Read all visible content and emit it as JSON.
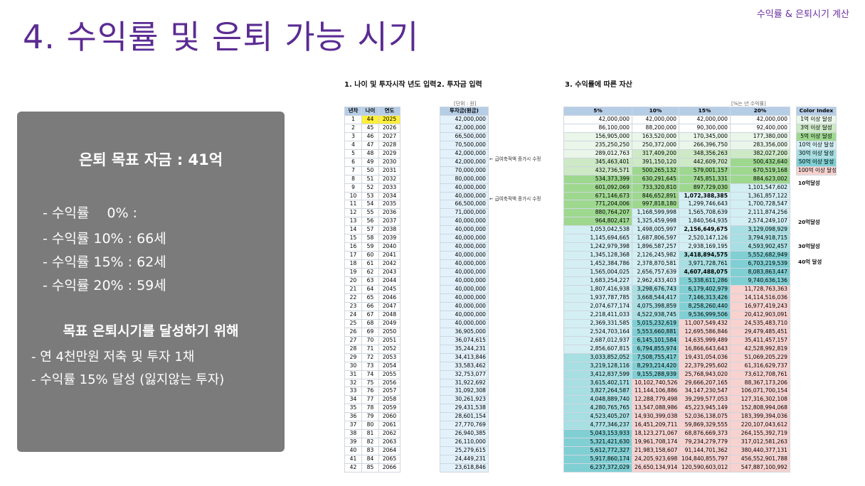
{
  "header": {
    "corner_label": "수익률 & 은퇴시기 계산",
    "title": "4. 수익률 및 은퇴 가능 시기"
  },
  "panel": {
    "goal": "은퇴 목표 자금 : 41억",
    "rates": [
      "- 수익률 　0% :",
      "- 수익률 10% : 66세",
      "- 수익률 15% : 62세",
      "- 수익률 20% : 59세"
    ],
    "subtitle": "목표 은퇴시기를 달성하기 위해",
    "actions": [
      "- 연 4천만원 저축 및 투자 1채",
      "- 수익률 15% 달성 (잃지않는 투자)"
    ]
  },
  "sheet": {
    "section1": "1. 나이 및 투자시작 년도 입력",
    "section2": "2. 투자금 입력",
    "section3": "3. 수익률에 따른 자산",
    "unit_label": "[단위 : 원]",
    "rate_unit": "[%는 년 수익률]",
    "headers_left": [
      "년차",
      "나이",
      "연도"
    ],
    "header_invest": "투자금(원금)",
    "headers_rates": [
      "5%",
      "10%",
      "15%",
      "20%"
    ],
    "note1": "← 급여축적액 증가시 수정",
    "note2": "← 급여축적액 증가시 수정",
    "color_index_title": "Color Index",
    "color_index": [
      {
        "label": "1억 이상 달성",
        "color": "#e9f6e9"
      },
      {
        "label": "3억 이상 달성",
        "color": "#cde9c5"
      },
      {
        "label": "5억 이상 달성",
        "color": "#9ed88f"
      },
      {
        "label": "10억 이상 달성",
        "color": "#d3eff3"
      },
      {
        "label": "30억 이상 달성",
        "color": "#a7dfe2"
      },
      {
        "label": "50억 이상 달성",
        "color": "#7fcfd3"
      },
      {
        "label": "100억 이상 달성",
        "color": "#f7d2cf"
      }
    ],
    "milestones": [
      "10억달성",
      "20억달성",
      "30억달성",
      "40억 달성"
    ],
    "rows": [
      [
        "1",
        "44",
        "2025",
        "42,000,000",
        "42,000,000",
        "42,000,000",
        "42,000,000",
        "42,000,000",
        "c0c0c0c0"
      ],
      [
        "2",
        "45",
        "2026",
        "42,000,000",
        "86,100,000",
        "88,200,000",
        "90,300,000",
        "92,400,000",
        "c0c0c0c0"
      ],
      [
        "3",
        "46",
        "2027",
        "66,500,000",
        "156,905,000",
        "163,520,000",
        "170,345,000",
        "177,380,000",
        "c1c1c1c1"
      ],
      [
        "4",
        "47",
        "2028",
        "70,500,000",
        "235,250,250",
        "250,372,000",
        "266,396,750",
        "283,356,000",
        "c1c1c1c1"
      ],
      [
        "5",
        "48",
        "2029",
        "42,000,000",
        "289,012,763",
        "317,409,200",
        "348,356,263",
        "382,027,200",
        "c1c2c2c2"
      ],
      [
        "6",
        "49",
        "2030",
        "42,000,000",
        "345,463,401",
        "391,150,120",
        "442,609,702",
        "500,432,640",
        "c2c2c2c3"
      ],
      [
        "7",
        "50",
        "2031",
        "70,000,000",
        "432,736,571",
        "500,265,132",
        "579,001,157",
        "670,519,168",
        "c2c3c3c3"
      ],
      [
        "8",
        "51",
        "2032",
        "80,000,000",
        "534,373,399",
        "630,291,645",
        "745,851,331",
        "884,623,002",
        "c3c3c3c3"
      ],
      [
        "9",
        "52",
        "2033",
        "40,000,000",
        "601,092,069",
        "733,320,810",
        "897,729,030",
        "1,101,547,602",
        "c3c3c3c4"
      ],
      [
        "10",
        "53",
        "2034",
        "40,000,000",
        "671,146,673",
        "846,652,891",
        "1,072,388,385",
        "1,361,857,122",
        "c3c3c4c4"
      ],
      [
        "11",
        "54",
        "2035",
        "66,500,000",
        "771,204,006",
        "997,818,180",
        "1,299,746,643",
        "1,700,728,547",
        "c3c3c4c4"
      ],
      [
        "12",
        "55",
        "2036",
        "71,000,000",
        "880,764,207",
        "1,168,599,998",
        "1,565,708,639",
        "2,111,874,256",
        "c3c4c4c4"
      ],
      [
        "13",
        "56",
        "2037",
        "40,000,000",
        "964,802,417",
        "1,325,459,998",
        "1,840,564,935",
        "2,574,249,107",
        "c3c4c4c4"
      ],
      [
        "14",
        "57",
        "2038",
        "40,000,000",
        "1,053,042,538",
        "1,498,005,997",
        "2,156,649,675",
        "3,129,098,929",
        "c4c4c4c5"
      ],
      [
        "15",
        "58",
        "2039",
        "40,000,000",
        "1,145,694,665",
        "1,687,806,597",
        "2,520,147,126",
        "3,794,918,715",
        "c4c4c4c5"
      ],
      [
        "16",
        "59",
        "2040",
        "40,000,000",
        "1,242,979,398",
        "1,896,587,257",
        "2,938,169,195",
        "4,593,902,457",
        "c4c4c4c5"
      ],
      [
        "17",
        "60",
        "2041",
        "40,000,000",
        "1,345,128,368",
        "2,126,245,982",
        "3,418,894,575",
        "5,552,682,949",
        "c4c4c5c6"
      ],
      [
        "18",
        "61",
        "2042",
        "40,000,000",
        "1,452,384,786",
        "2,378,870,581",
        "3,971,728,761",
        "6,703,219,539",
        "c4c4c5c6"
      ],
      [
        "19",
        "62",
        "2043",
        "40,000,000",
        "1,565,004,025",
        "2,656,757,639",
        "4,607,488,075",
        "8,083,863,447",
        "c4c4c5c6"
      ],
      [
        "20",
        "63",
        "2044",
        "40,000,000",
        "1,683,254,227",
        "2,962,433,403",
        "5,338,611,286",
        "9,740,636,136",
        "c4c4c6c6"
      ],
      [
        "21",
        "64",
        "2045",
        "40,000,000",
        "1,807,416,938",
        "3,298,676,743",
        "6,179,402,979",
        "11,728,763,363",
        "c4c5c6c7"
      ],
      [
        "22",
        "65",
        "2046",
        "40,000,000",
        "1,937,787,785",
        "3,668,544,417",
        "7,146,313,426",
        "14,114,516,036",
        "c4c5c6c7"
      ],
      [
        "23",
        "66",
        "2047",
        "40,000,000",
        "2,074,677,174",
        "4,075,398,859",
        "8,258,260,440",
        "16,977,419,243",
        "c4c5c6c7"
      ],
      [
        "24",
        "67",
        "2048",
        "40,000,000",
        "2,218,411,033",
        "4,522,938,745",
        "9,536,999,506",
        "20,412,903,091",
        "c4c5c6c7"
      ],
      [
        "25",
        "68",
        "2049",
        "40,000,000",
        "2,369,331,585",
        "5,015,232,619",
        "11,007,549,432",
        "24,535,483,710",
        "c4c6c7c7"
      ],
      [
        "26",
        "69",
        "2050",
        "36,905,000",
        "2,524,703,164",
        "5,553,660,881",
        "12,695,586,846",
        "29,479,485,451",
        "c4c6c7c7"
      ],
      [
        "27",
        "70",
        "2051",
        "36,074,615",
        "2,687,012,937",
        "6,145,101,584",
        "14,635,999,489",
        "35,411,457,157",
        "c4c6c7c7"
      ],
      [
        "28",
        "71",
        "2052",
        "35,244,231",
        "2,856,607,815",
        "6,794,855,974",
        "16,866,643,643",
        "42,528,992,819",
        "c4c6c7c7"
      ],
      [
        "29",
        "72",
        "2053",
        "34,413,846",
        "3,033,852,052",
        "7,508,755,417",
        "19,431,054,036",
        "51,069,205,229",
        "c5c6c7c7"
      ],
      [
        "30",
        "73",
        "2054",
        "33,583,462",
        "3,219,128,116",
        "8,293,214,420",
        "22,379,295,602",
        "61,316,629,737",
        "c5c6c7c7"
      ],
      [
        "31",
        "74",
        "2055",
        "32,753,077",
        "3,412,837,599",
        "9,155,288,939",
        "25,768,943,020",
        "73,612,708,761",
        "c5c6c7c7"
      ],
      [
        "32",
        "75",
        "2056",
        "31,922,692",
        "3,615,402,171",
        "10,102,740,526",
        "29,666,207,165",
        "88,367,173,206",
        "c5c7c7c7"
      ],
      [
        "33",
        "76",
        "2057",
        "31,092,308",
        "3,827,264,587",
        "11,144,106,886",
        "34,147,230,547",
        "106,071,700,154",
        "c5c7c7c7"
      ],
      [
        "34",
        "77",
        "2058",
        "30,261,923",
        "4,048,889,740",
        "12,288,779,498",
        "39,299,577,053",
        "127,316,302,108",
        "c5c7c7c7"
      ],
      [
        "35",
        "78",
        "2059",
        "29,431,538",
        "4,280,765,765",
        "13,547,088,986",
        "45,223,945,149",
        "152,808,994,068",
        "c5c7c7c7"
      ],
      [
        "36",
        "79",
        "2060",
        "28,601,154",
        "4,523,405,207",
        "14,930,399,038",
        "52,036,138,075",
        "183,399,394,036",
        "c5c7c7c7"
      ],
      [
        "37",
        "80",
        "2061",
        "27,770,769",
        "4,777,346,237",
        "16,451,209,711",
        "59,869,329,555",
        "220,107,043,612",
        "c5c7c7c7"
      ],
      [
        "38",
        "81",
        "2062",
        "26,940,385",
        "5,043,153,933",
        "18,123,271,067",
        "68,876,669,373",
        "264,155,392,719",
        "c6c7c7c7"
      ],
      [
        "39",
        "82",
        "2063",
        "26,110,000",
        "5,321,421,630",
        "19,961,708,174",
        "79,234,279,779",
        "317,012,581,263",
        "c6c7c7c7"
      ],
      [
        "40",
        "83",
        "2064",
        "25,279,615",
        "5,612,772,327",
        "21,983,158,607",
        "91,144,701,362",
        "380,440,377,131",
        "c6c7c7c7"
      ],
      [
        "41",
        "84",
        "2065",
        "24,449,231",
        "5,917,860,174",
        "24,205,923,698",
        "104,840,855,797",
        "456,552,901,788",
        "c6c7c7c7"
      ],
      [
        "42",
        "85",
        "2066",
        "23,618,846",
        "6,237,372,029",
        "26,650,134,914",
        "120,590,603,012",
        "547,887,100,992",
        "c6c7c7c7"
      ]
    ]
  }
}
